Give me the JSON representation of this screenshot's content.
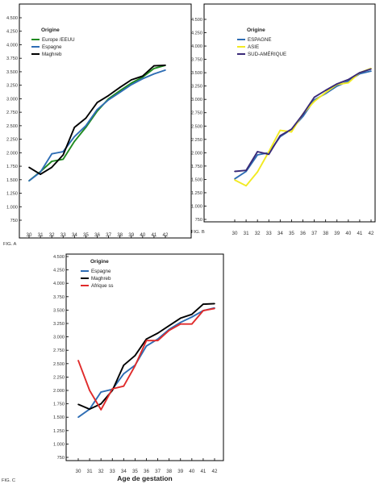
{
  "chart_data": [
    {
      "type": "line",
      "fig_label": "FIG. A",
      "title": "",
      "xlabel": "",
      "ylabel": "",
      "x": [
        30,
        31,
        32,
        33,
        34,
        35,
        36,
        37,
        38,
        39,
        40,
        41,
        42
      ],
      "x_ticks": [
        "30",
        "31",
        "32",
        "33",
        "34",
        "35",
        "36",
        "37",
        "38",
        "39",
        "40",
        "41",
        "42"
      ],
      "ylim": [
        750,
        4500
      ],
      "y_ticks": [
        "750",
        "1.000",
        "1.250",
        "1.500",
        "1.750",
        "2.000",
        "2.250",
        "2.500",
        "2.750",
        "3.000",
        "3.250",
        "3.500",
        "3.750",
        "4.000",
        "4.250",
        "4.500"
      ],
      "legend_title": "Origine",
      "legend_position": "top-left",
      "series": [
        {
          "name": "Europe /EEUU",
          "color": "#1f8a1f",
          "values": [
            1480,
            1650,
            1840,
            1880,
            2210,
            2470,
            2770,
            3000,
            3150,
            3290,
            3400,
            3560,
            3620
          ]
        },
        {
          "name": "Espagne",
          "color": "#2e6db4",
          "values": [
            1480,
            1640,
            1980,
            2020,
            2300,
            2500,
            2800,
            2980,
            3120,
            3260,
            3370,
            3460,
            3530
          ]
        },
        {
          "name": "Maghreb",
          "color": "#000000",
          "values": [
            1730,
            1600,
            1730,
            1960,
            2470,
            2640,
            2930,
            3060,
            3210,
            3350,
            3420,
            3610,
            3620
          ]
        }
      ]
    },
    {
      "type": "line",
      "fig_label": "FIG. B",
      "title": "",
      "xlabel": "",
      "ylabel": "",
      "x": [
        30,
        31,
        32,
        33,
        34,
        35,
        36,
        37,
        38,
        39,
        40,
        41,
        42
      ],
      "x_ticks": [
        "30",
        "31",
        "32",
        "33",
        "34",
        "35",
        "36",
        "37",
        "38",
        "39",
        "40",
        "41",
        "42"
      ],
      "ylim": [
        750,
        4500
      ],
      "y_ticks": [
        "750",
        "1.000",
        "1.250",
        "1.500",
        "1.750",
        "2.000",
        "2.250",
        "2.500",
        "2.750",
        "3.000",
        "3.250",
        "3.500",
        "3.750",
        "4.000",
        "4.250",
        "4.500"
      ],
      "legend_title": "Origine",
      "legend_position": "top-left",
      "series": [
        {
          "name": "ESPAGNE",
          "color": "#2e6db4",
          "values": [
            1510,
            1650,
            1960,
            2000,
            2300,
            2440,
            2680,
            2990,
            3110,
            3250,
            3340,
            3480,
            3530
          ]
        },
        {
          "name": "ASIE",
          "color": "#f2ea22",
          "values": [
            1490,
            1380,
            1640,
            2020,
            2420,
            2390,
            2730,
            2960,
            3130,
            3280,
            3310,
            3500,
            3580
          ]
        },
        {
          "name": "SUD-AMÉRIQUE",
          "color": "#3a2a78",
          "values": [
            1650,
            1670,
            2020,
            1970,
            2320,
            2440,
            2720,
            3040,
            3170,
            3290,
            3370,
            3500,
            3570
          ]
        }
      ]
    },
    {
      "type": "line",
      "fig_label": "FIG. C",
      "title": "",
      "xlabel": "Age de gestation",
      "ylabel": "",
      "x": [
        30,
        31,
        32,
        33,
        34,
        35,
        36,
        37,
        38,
        39,
        40,
        41,
        42
      ],
      "x_ticks": [
        "30",
        "31",
        "32",
        "33",
        "34",
        "35",
        "36",
        "37",
        "38",
        "39",
        "40",
        "41",
        "42"
      ],
      "ylim": [
        750,
        4500
      ],
      "y_ticks": [
        "750",
        "1.000",
        "1.250",
        "1.500",
        "1.750",
        "2.000",
        "2.250",
        "2.500",
        "2.750",
        "3.000",
        "3.250",
        "3.500",
        "3.750",
        "4.000",
        "4.250",
        "4.500"
      ],
      "legend_title": "Origine",
      "legend_position": "top-left",
      "series": [
        {
          "name": "Espagne",
          "color": "#2e6db4",
          "values": [
            1500,
            1650,
            1970,
            2020,
            2310,
            2470,
            2830,
            2960,
            3140,
            3270,
            3370,
            3490,
            3540
          ]
        },
        {
          "name": "Maghreb",
          "color": "#000000",
          "values": [
            1740,
            1650,
            1750,
            2000,
            2470,
            2650,
            2960,
            3070,
            3210,
            3350,
            3420,
            3610,
            3620
          ]
        },
        {
          "name": "Afrique ss",
          "color": "#e02b2b",
          "values": [
            2560,
            2000,
            1640,
            2030,
            2080,
            2460,
            2930,
            2930,
            3120,
            3240,
            3240,
            3490,
            3530
          ]
        }
      ]
    }
  ]
}
